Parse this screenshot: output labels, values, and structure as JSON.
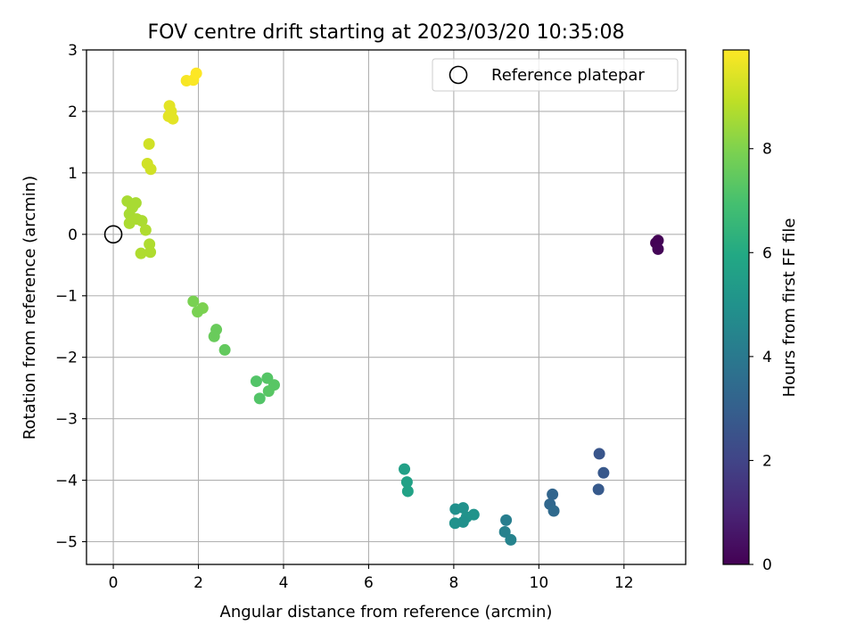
{
  "chart_data": {
    "type": "scatter",
    "title": "FOV centre drift starting at 2023/03/20 10:35:08",
    "xlabel": "Angular distance from reference (arcmin)",
    "ylabel": "Rotation from reference (arcmin)",
    "xlim": [
      -0.63,
      13.45
    ],
    "ylim": [
      -5.37,
      3.0
    ],
    "xticks": [
      0,
      2,
      4,
      6,
      8,
      10,
      12
    ],
    "xtick_labels": [
      "0",
      "2",
      "4",
      "6",
      "8",
      "10",
      "12"
    ],
    "yticks": [
      3,
      2,
      1,
      0,
      -1,
      -2,
      -3,
      -4,
      -5
    ],
    "ytick_labels": [
      "3",
      "2",
      "1",
      "0",
      "−1",
      "−2",
      "−3",
      "−4",
      "−5"
    ],
    "grid": true,
    "legend": {
      "placement": "top-right",
      "entries": [
        {
          "label": "Reference platepar",
          "marker": "open-circle"
        }
      ]
    },
    "reference": {
      "x": 0,
      "y": 0,
      "label": "Reference platepar"
    },
    "colorbar": {
      "label": "Hours from first FF file",
      "colormap": "viridis",
      "range": [
        0,
        9.9
      ],
      "ticks": [
        0,
        2,
        4,
        6,
        8
      ],
      "tick_labels": [
        "0",
        "2",
        "4",
        "6",
        "8"
      ]
    },
    "points": [
      {
        "x": 12.75,
        "y": -0.14,
        "c": 0.0
      },
      {
        "x": 12.8,
        "y": -0.1,
        "c": 0.05
      },
      {
        "x": 12.8,
        "y": -0.24,
        "c": 0.1
      },
      {
        "x": 11.42,
        "y": -3.57,
        "c": 2.6
      },
      {
        "x": 11.52,
        "y": -3.88,
        "c": 2.7
      },
      {
        "x": 11.4,
        "y": -4.15,
        "c": 2.8
      },
      {
        "x": 10.32,
        "y": -4.23,
        "c": 3.2
      },
      {
        "x": 10.26,
        "y": -4.39,
        "c": 3.3
      },
      {
        "x": 10.35,
        "y": -4.5,
        "c": 3.4
      },
      {
        "x": 9.23,
        "y": -4.65,
        "c": 4.2
      },
      {
        "x": 9.2,
        "y": -4.84,
        "c": 4.3
      },
      {
        "x": 9.34,
        "y": -4.97,
        "c": 4.4
      },
      {
        "x": 8.04,
        "y": -4.47,
        "c": 4.9
      },
      {
        "x": 8.22,
        "y": -4.45,
        "c": 5.0
      },
      {
        "x": 8.47,
        "y": -4.56,
        "c": 5.1
      },
      {
        "x": 8.3,
        "y": -4.6,
        "c": 5.05
      },
      {
        "x": 8.03,
        "y": -4.7,
        "c": 5.0
      },
      {
        "x": 8.22,
        "y": -4.68,
        "c": 4.95
      },
      {
        "x": 6.84,
        "y": -3.82,
        "c": 5.6
      },
      {
        "x": 6.9,
        "y": -4.03,
        "c": 5.65
      },
      {
        "x": 6.92,
        "y": -4.18,
        "c": 5.7
      },
      {
        "x": 3.36,
        "y": -2.39,
        "c": 7.2
      },
      {
        "x": 3.62,
        "y": -2.34,
        "c": 7.25
      },
      {
        "x": 3.78,
        "y": -2.45,
        "c": 7.3
      },
      {
        "x": 3.65,
        "y": -2.55,
        "c": 7.3
      },
      {
        "x": 3.44,
        "y": -2.67,
        "c": 7.2
      },
      {
        "x": 2.42,
        "y": -1.55,
        "c": 7.6
      },
      {
        "x": 2.37,
        "y": -1.66,
        "c": 7.6
      },
      {
        "x": 2.62,
        "y": -1.88,
        "c": 7.5
      },
      {
        "x": 1.88,
        "y": -1.09,
        "c": 7.9
      },
      {
        "x": 2.1,
        "y": -1.2,
        "c": 7.95
      },
      {
        "x": 1.98,
        "y": -1.26,
        "c": 7.9
      },
      {
        "x": 0.33,
        "y": 0.54,
        "c": 8.6
      },
      {
        "x": 0.53,
        "y": 0.51,
        "c": 8.6
      },
      {
        "x": 0.45,
        "y": 0.44,
        "c": 8.6
      },
      {
        "x": 0.38,
        "y": 0.33,
        "c": 8.6
      },
      {
        "x": 0.55,
        "y": 0.25,
        "c": 8.65
      },
      {
        "x": 0.67,
        "y": 0.22,
        "c": 8.65
      },
      {
        "x": 0.38,
        "y": 0.18,
        "c": 8.65
      },
      {
        "x": 0.76,
        "y": 0.07,
        "c": 8.7
      },
      {
        "x": 0.85,
        "y": -0.16,
        "c": 8.7
      },
      {
        "x": 0.87,
        "y": -0.29,
        "c": 8.7
      },
      {
        "x": 0.65,
        "y": -0.31,
        "c": 8.7
      },
      {
        "x": 0.84,
        "y": 1.47,
        "c": 9.2
      },
      {
        "x": 0.8,
        "y": 1.15,
        "c": 9.2
      },
      {
        "x": 0.88,
        "y": 1.06,
        "c": 9.2
      },
      {
        "x": 1.32,
        "y": 2.09,
        "c": 9.5
      },
      {
        "x": 1.36,
        "y": 2.0,
        "c": 9.5
      },
      {
        "x": 1.3,
        "y": 1.92,
        "c": 9.5
      },
      {
        "x": 1.4,
        "y": 1.88,
        "c": 9.5
      },
      {
        "x": 1.72,
        "y": 2.5,
        "c": 9.8
      },
      {
        "x": 1.88,
        "y": 2.51,
        "c": 9.85
      },
      {
        "x": 1.95,
        "y": 2.62,
        "c": 9.9
      }
    ]
  }
}
